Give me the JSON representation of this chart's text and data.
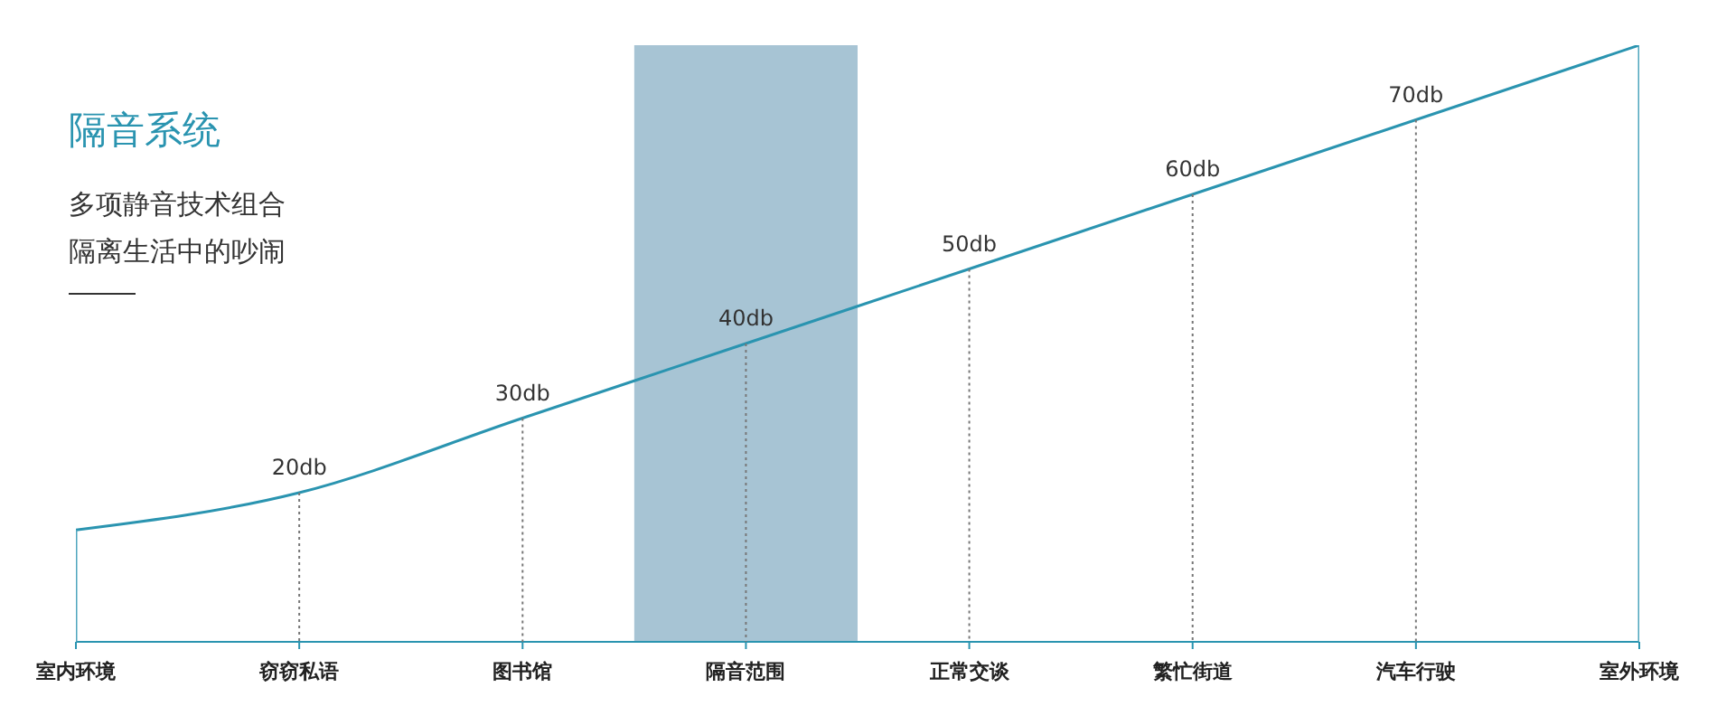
{
  "chart_data": {
    "type": "line",
    "title": "隔音系统",
    "subtitle": "多项静音技术组合隔离生活中的吵闹",
    "categories": [
      "室内环境",
      "窃窃私语",
      "图书馆",
      "隔音范围",
      "正常交谈",
      "繁忙街道",
      "汽车行驶",
      "室外环境"
    ],
    "series": [
      {
        "color": "#2a94b0",
        "values": [
          15,
          20,
          30,
          40,
          50,
          60,
          70,
          80
        ],
        "value_labels": [
          null,
          "20db",
          "30db",
          "40db",
          "50db",
          "60db",
          "70db",
          null
        ]
      }
    ],
    "ylim": [
      0,
      80
    ],
    "tick_labels": "x",
    "bands": [
      {
        "axis": "x",
        "from": "隔音范围",
        "to": "隔音范围",
        "color": "#a7c4d4"
      }
    ],
    "marker": "none",
    "grid": "x"
  }
}
